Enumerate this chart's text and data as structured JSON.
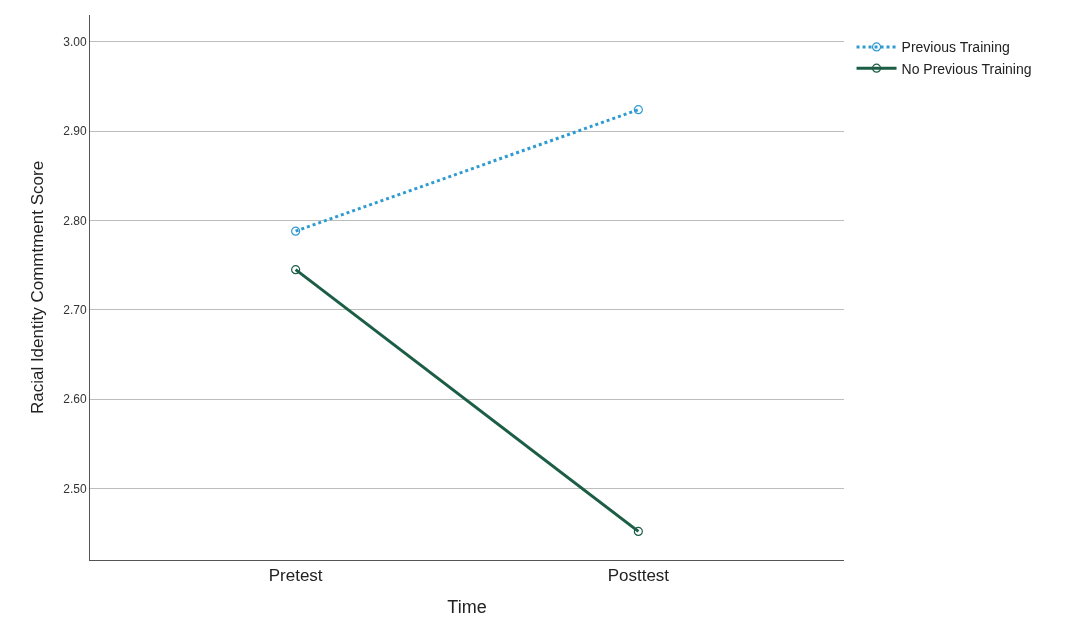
{
  "chart_data": {
    "type": "line",
    "xlabel": "Time",
    "ylabel": "Racial Identity Commtment Score",
    "categories": [
      "Pretest",
      "Posttest"
    ],
    "series": [
      {
        "name": "Previous Training",
        "color": "#2f9bd0",
        "values": [
          2.788,
          2.924
        ],
        "line_style": "dotted"
      },
      {
        "name": "No Previous Training",
        "color": "#1b5e45",
        "values": [
          2.745,
          2.452
        ],
        "line_style": "solid"
      }
    ],
    "ylim": [
      2.42,
      3.03
    ],
    "yticks": [
      {
        "value": 2.5,
        "label": "2.50"
      },
      {
        "value": 2.6,
        "label": "2.60"
      },
      {
        "value": 2.7,
        "label": "2.70"
      },
      {
        "value": 2.8,
        "label": "2.80"
      },
      {
        "value": 2.9,
        "label": "2.90"
      },
      {
        "value": 3.0,
        "label": "3.00"
      }
    ],
    "grid": "y",
    "legend": "top right",
    "marker": "circle"
  }
}
